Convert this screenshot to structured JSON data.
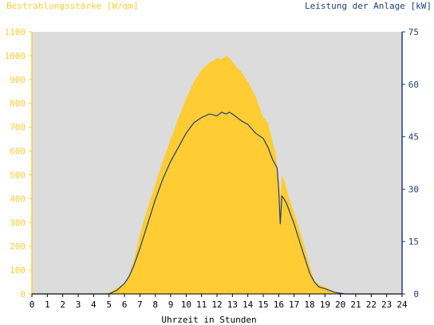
{
  "chart_data": {
    "type": "area",
    "title_left": "Bestrahlungsstärke [W/qm]",
    "title_right": "Leistung der Anlage [kW]",
    "xlabel": "Uhrzeit in Stunden",
    "xlim": [
      0,
      24
    ],
    "ylim_left": [
      0,
      1100
    ],
    "ylim_right": [
      0,
      75
    ],
    "x_ticks": [
      "0",
      "1",
      "2",
      "3",
      "4",
      "5",
      "6",
      "7",
      "8",
      "9",
      "10",
      "11",
      "12",
      "13",
      "14",
      "15",
      "16",
      "17",
      "18",
      "19",
      "20",
      "21",
      "22",
      "23",
      "24"
    ],
    "y_left_ticks": [
      "0",
      "100",
      "200",
      "300",
      "400",
      "500",
      "600",
      "700",
      "800",
      "900",
      "1000",
      "1100"
    ],
    "y_right_ticks": [
      "0",
      "15",
      "30",
      "45",
      "60",
      "75"
    ],
    "grid": false,
    "colors": {
      "irradiance_fill": "#ffcc33",
      "power_line": "#1f3f7a",
      "plot_background": "#dcdcdc"
    },
    "series": [
      {
        "axis": "left",
        "x": [
          0,
          4.5,
          5.0,
          5.5,
          6.0,
          6.3,
          6.6,
          7.0,
          7.5,
          8.0,
          8.5,
          9.0,
          9.5,
          10.0,
          10.5,
          11.0,
          11.5,
          11.8,
          12.0,
          12.3,
          12.6,
          12.8,
          13.0,
          13.3,
          13.6,
          14.0,
          14.5,
          15.0,
          15.3,
          15.6,
          15.8,
          16.0,
          16.1,
          16.2,
          16.4,
          16.6,
          17.0,
          17.5,
          18.0,
          18.3,
          18.6,
          19.0,
          19.3,
          19.6,
          20.0,
          20.3,
          24
        ],
        "values": [
          0,
          0,
          5,
          25,
          45,
          80,
          140,
          250,
          360,
          460,
          560,
          650,
          740,
          820,
          890,
          940,
          970,
          980,
          990,
          985,
          1000,
          990,
          975,
          950,
          930,
          890,
          830,
          740,
          720,
          640,
          590,
          480,
          400,
          500,
          470,
          420,
          340,
          240,
          120,
          60,
          40,
          30,
          20,
          10,
          5,
          0,
          0
        ]
      },
      {
        "axis": "right",
        "x": [
          0,
          5.0,
          5.5,
          6.0,
          6.3,
          6.6,
          7.0,
          7.5,
          8.0,
          8.5,
          9.0,
          9.5,
          10.0,
          10.5,
          11.0,
          11.5,
          12.0,
          12.3,
          12.6,
          12.8,
          13.0,
          13.3,
          13.6,
          14.0,
          14.5,
          15.0,
          15.3,
          15.6,
          15.9,
          16.0,
          16.1,
          16.2,
          16.3,
          16.5,
          17.0,
          17.5,
          18.0,
          18.3,
          18.6,
          19.0,
          19.3,
          19.6,
          20.0,
          20.3,
          24
        ],
        "values": [
          0,
          0,
          1,
          3,
          5,
          8,
          13,
          20,
          27,
          33,
          38,
          42,
          46,
          49,
          50.5,
          51.5,
          51,
          52,
          51.5,
          52,
          51.5,
          50.5,
          49.5,
          48.5,
          46,
          44.5,
          42,
          38.5,
          36,
          30,
          20,
          28,
          27.5,
          26,
          20,
          13,
          6,
          3.5,
          2,
          1.5,
          1,
          0.5,
          0.2,
          0,
          0
        ]
      }
    ]
  }
}
